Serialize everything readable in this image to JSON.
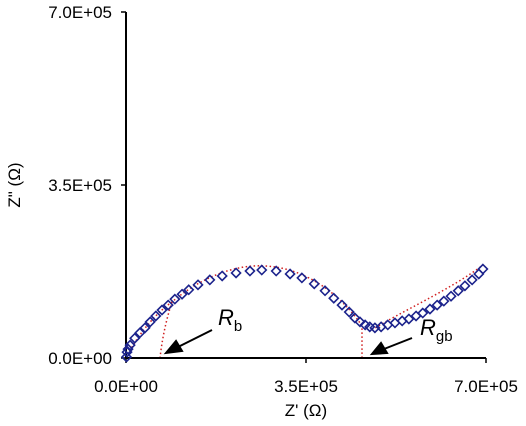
{
  "chart_data": {
    "type": "scatter",
    "x_label": "Z' (Ω)",
    "y_label": "Z\" (Ω)",
    "series": [
      {
        "color": "#1c238c",
        "x": [
          1000,
          2000,
          4000,
          8000,
          17000,
          27000,
          37000,
          47000,
          58000,
          70000,
          82000,
          95000,
          109000,
          122000,
          140000,
          163000,
          187000,
          214000,
          241000,
          264000,
          292000,
          319000,
          342000,
          366000,
          387000,
          404000,
          420000,
          434000,
          445000,
          455000,
          465000,
          474000,
          484000,
          496000,
          509000,
          523000,
          537000,
          550000,
          564000,
          577000,
          591000,
          605000,
          618000,
          632000,
          646000,
          659000,
          673000,
          686000,
          694000
        ],
        "values": [
          2000,
          12000,
          18000,
          26000,
          40000,
          51000,
          61000,
          73000,
          85000,
          97000,
          107000,
          119000,
          129000,
          138000,
          148000,
          158000,
          166000,
          172000,
          176000,
          178000,
          176000,
          170000,
          162000,
          150000,
          136000,
          121000,
          107000,
          93000,
          81000,
          73000,
          67000,
          63000,
          61000,
          63000,
          67000,
          71000,
          75000,
          79000,
          85000,
          91000,
          99000,
          107000,
          115000,
          125000,
          136000,
          146000,
          158000,
          170000,
          180000
        ]
      }
    ],
    "xlim": [
      0,
      700000
    ],
    "ylim": [
      0,
      700000
    ],
    "xticks": [
      {
        "value": 0,
        "label": "0.0E+00"
      },
      {
        "value": 350000,
        "label": "3.5E+05"
      },
      {
        "value": 700000,
        "label": "7.0E+05"
      }
    ],
    "yticks": [
      {
        "value": 0,
        "label": "0.0E+00"
      },
      {
        "value": 350000,
        "label": "3.5E+05"
      },
      {
        "value": 700000,
        "label": "7.0E+05"
      }
    ],
    "grid": false,
    "annotations": [
      {
        "text": "R",
        "sub": "b"
      },
      {
        "text": "R",
        "sub": "gb"
      }
    ]
  }
}
